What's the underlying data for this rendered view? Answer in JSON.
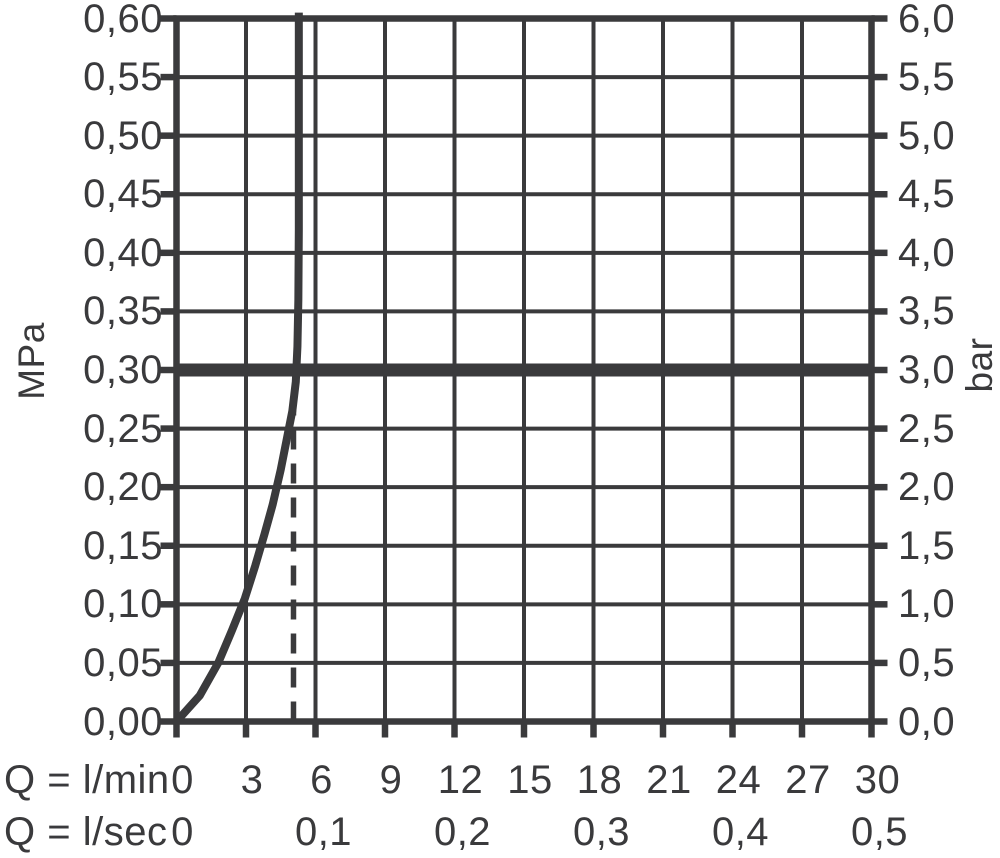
{
  "colors": {
    "ink": "#3a3a3c",
    "background": "#ffffff"
  },
  "axis_unit_labels": {
    "left": "MPa",
    "right": "bar"
  },
  "bottom_rows": {
    "lmin_prefix": "Q = l/min",
    "lsec_prefix": "Q = l/sec"
  },
  "chart_data": {
    "type": "line",
    "title": "",
    "xlabel_rows": [
      "Q = l/min",
      "Q = l/sec"
    ],
    "ylabel_left": "MPa",
    "ylabel_right": "bar",
    "x_range_lmin": [
      0,
      30
    ],
    "x_step_lmin": 3,
    "y_range_mpa": [
      0,
      0.6
    ],
    "y_step_mpa": 0.05,
    "y_right_range_bar": [
      0,
      6
    ],
    "y_right_step_bar": 0.5,
    "grid": true,
    "legend": "none",
    "y_left_ticks": [
      {
        "v": 0.6,
        "label": "0,60"
      },
      {
        "v": 0.55,
        "label": "0,55"
      },
      {
        "v": 0.5,
        "label": "0,50"
      },
      {
        "v": 0.45,
        "label": "0,45"
      },
      {
        "v": 0.4,
        "label": "0,40"
      },
      {
        "v": 0.35,
        "label": "0,35"
      },
      {
        "v": 0.3,
        "label": "0,30"
      },
      {
        "v": 0.25,
        "label": "0,25"
      },
      {
        "v": 0.2,
        "label": "0,20"
      },
      {
        "v": 0.15,
        "label": "0,15"
      },
      {
        "v": 0.1,
        "label": "0,10"
      },
      {
        "v": 0.05,
        "label": "0,05"
      },
      {
        "v": 0.0,
        "label": "0,00"
      }
    ],
    "y_right_ticks": [
      {
        "v": 0.6,
        "label": "6,0"
      },
      {
        "v": 0.55,
        "label": "5,5"
      },
      {
        "v": 0.5,
        "label": "5,0"
      },
      {
        "v": 0.45,
        "label": "4,5"
      },
      {
        "v": 0.4,
        "label": "4,0"
      },
      {
        "v": 0.35,
        "label": "3,5"
      },
      {
        "v": 0.3,
        "label": "3,0"
      },
      {
        "v": 0.25,
        "label": "2,5"
      },
      {
        "v": 0.2,
        "label": "2,0"
      },
      {
        "v": 0.15,
        "label": "1,5"
      },
      {
        "v": 0.1,
        "label": "1,0"
      },
      {
        "v": 0.05,
        "label": "0,5"
      },
      {
        "v": 0.0,
        "label": "0,0"
      }
    ],
    "x_lmin_ticks": [
      {
        "v": 0,
        "label": "0"
      },
      {
        "v": 3,
        "label": "3"
      },
      {
        "v": 6,
        "label": "6"
      },
      {
        "v": 9,
        "label": "9"
      },
      {
        "v": 12,
        "label": "12"
      },
      {
        "v": 15,
        "label": "15"
      },
      {
        "v": 18,
        "label": "18"
      },
      {
        "v": 21,
        "label": "21"
      },
      {
        "v": 24,
        "label": "24"
      },
      {
        "v": 27,
        "label": "27"
      },
      {
        "v": 30,
        "label": "30"
      }
    ],
    "x_lsec_ticks": [
      {
        "v": 0,
        "label": "0"
      },
      {
        "v": 6,
        "label": "0,1"
      },
      {
        "v": 12,
        "label": "0,2"
      },
      {
        "v": 18,
        "label": "0,3"
      },
      {
        "v": 24,
        "label": "0,4"
      },
      {
        "v": 30,
        "label": "0,5"
      }
    ],
    "series": [
      {
        "name": "flow-curve",
        "style": "solid",
        "points_lmin_mpa": [
          [
            0,
            0
          ],
          [
            1.0,
            0.022
          ],
          [
            1.8,
            0.05
          ],
          [
            2.4,
            0.078
          ],
          [
            2.95,
            0.105
          ],
          [
            3.4,
            0.133
          ],
          [
            3.8,
            0.16
          ],
          [
            4.15,
            0.185
          ],
          [
            4.5,
            0.215
          ],
          [
            4.8,
            0.245
          ],
          [
            5.0,
            0.265
          ],
          [
            5.15,
            0.29
          ],
          [
            5.22,
            0.32
          ],
          [
            5.26,
            0.36
          ],
          [
            5.28,
            0.42
          ],
          [
            5.28,
            0.605
          ]
        ]
      },
      {
        "name": "pressure-reference-line",
        "style": "thick-horizontal",
        "y_mpa": 0.3,
        "y_bar": 3.0
      },
      {
        "name": "flow-at-3bar-dashed-line",
        "style": "dashed-vertical",
        "x_lmin": 5.05,
        "from_mpa": 0,
        "to_mpa": 0.268
      }
    ]
  }
}
